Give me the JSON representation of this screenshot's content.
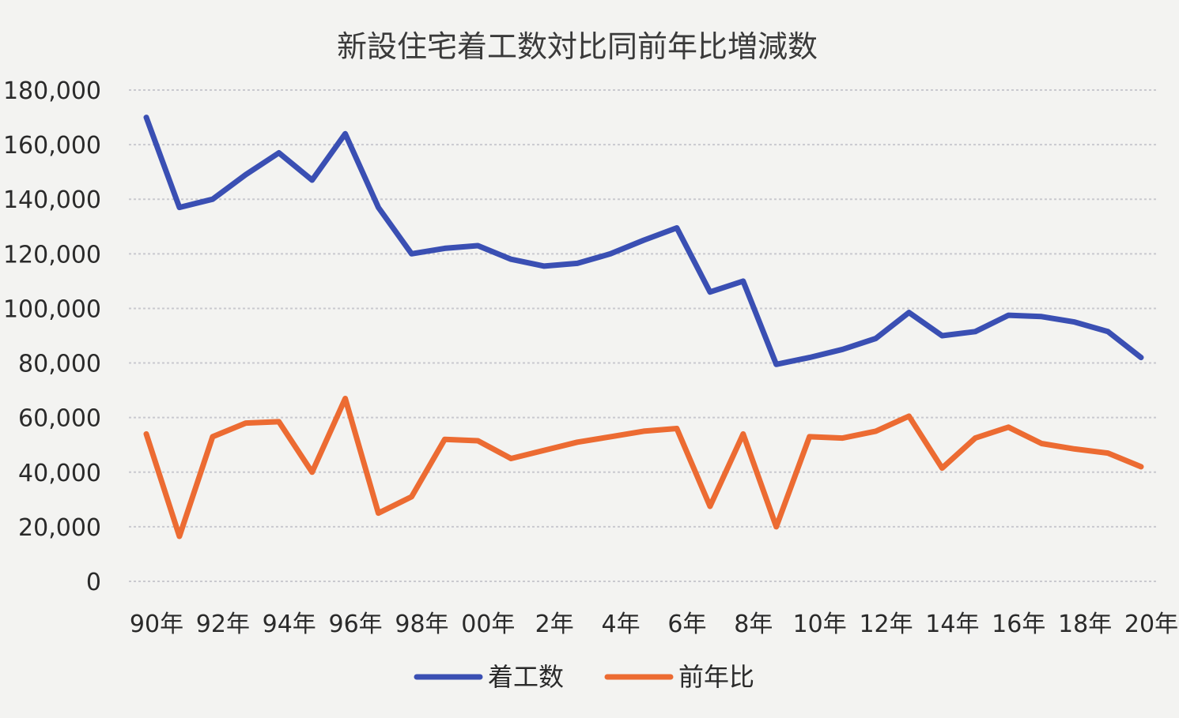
{
  "chart_data": {
    "type": "line",
    "title": "新設住宅着工数対比同前年比増減数",
    "xlabel": "",
    "ylabel": "",
    "ylim": [
      0,
      180000
    ],
    "yticks": [
      "0",
      "20,000",
      "40,000",
      "60,000",
      "80,000",
      "100,000",
      "120,000",
      "140,000",
      "160,000",
      "180,000"
    ],
    "x": [
      "90年",
      "91年",
      "92年",
      "93年",
      "94年",
      "95年",
      "96年",
      "97年",
      "98年",
      "99年",
      "00年",
      "01年",
      "2年",
      "3年",
      "4年",
      "5年",
      "6年",
      "7年",
      "8年",
      "9年",
      "10年",
      "11年",
      "12年",
      "13年",
      "14年",
      "15年",
      "16年",
      "17年",
      "18年",
      "19年",
      "20年"
    ],
    "xtick_labels": [
      "90年",
      "92年",
      "94年",
      "96年",
      "98年",
      "00年",
      "2年",
      "4年",
      "6年",
      "8年",
      "10年",
      "12年",
      "14年",
      "16年",
      "18年",
      "20年"
    ],
    "grid": true,
    "legend_position": "bottom",
    "series": [
      {
        "name": "着工数",
        "color": "#3a4fb3",
        "values": [
          170000,
          137000,
          140000,
          149000,
          157000,
          147000,
          164000,
          137000,
          120000,
          122000,
          123000,
          118000,
          115500,
          116500,
          120000,
          125000,
          129500,
          106000,
          110000,
          79500,
          82000,
          85000,
          89000,
          98500,
          90000,
          91500,
          97500,
          97000,
          95000,
          91500,
          82000
        ]
      },
      {
        "name": "前年比",
        "color": "#ec6b32",
        "values": [
          54000,
          16500,
          53000,
          58000,
          58500,
          40000,
          67000,
          25000,
          31000,
          52000,
          51500,
          45000,
          48000,
          51000,
          53000,
          55000,
          56000,
          27500,
          54000,
          20000,
          53000,
          52500,
          55000,
          60500,
          41500,
          52500,
          56500,
          50500,
          48500,
          47000,
          42000
        ]
      }
    ]
  }
}
